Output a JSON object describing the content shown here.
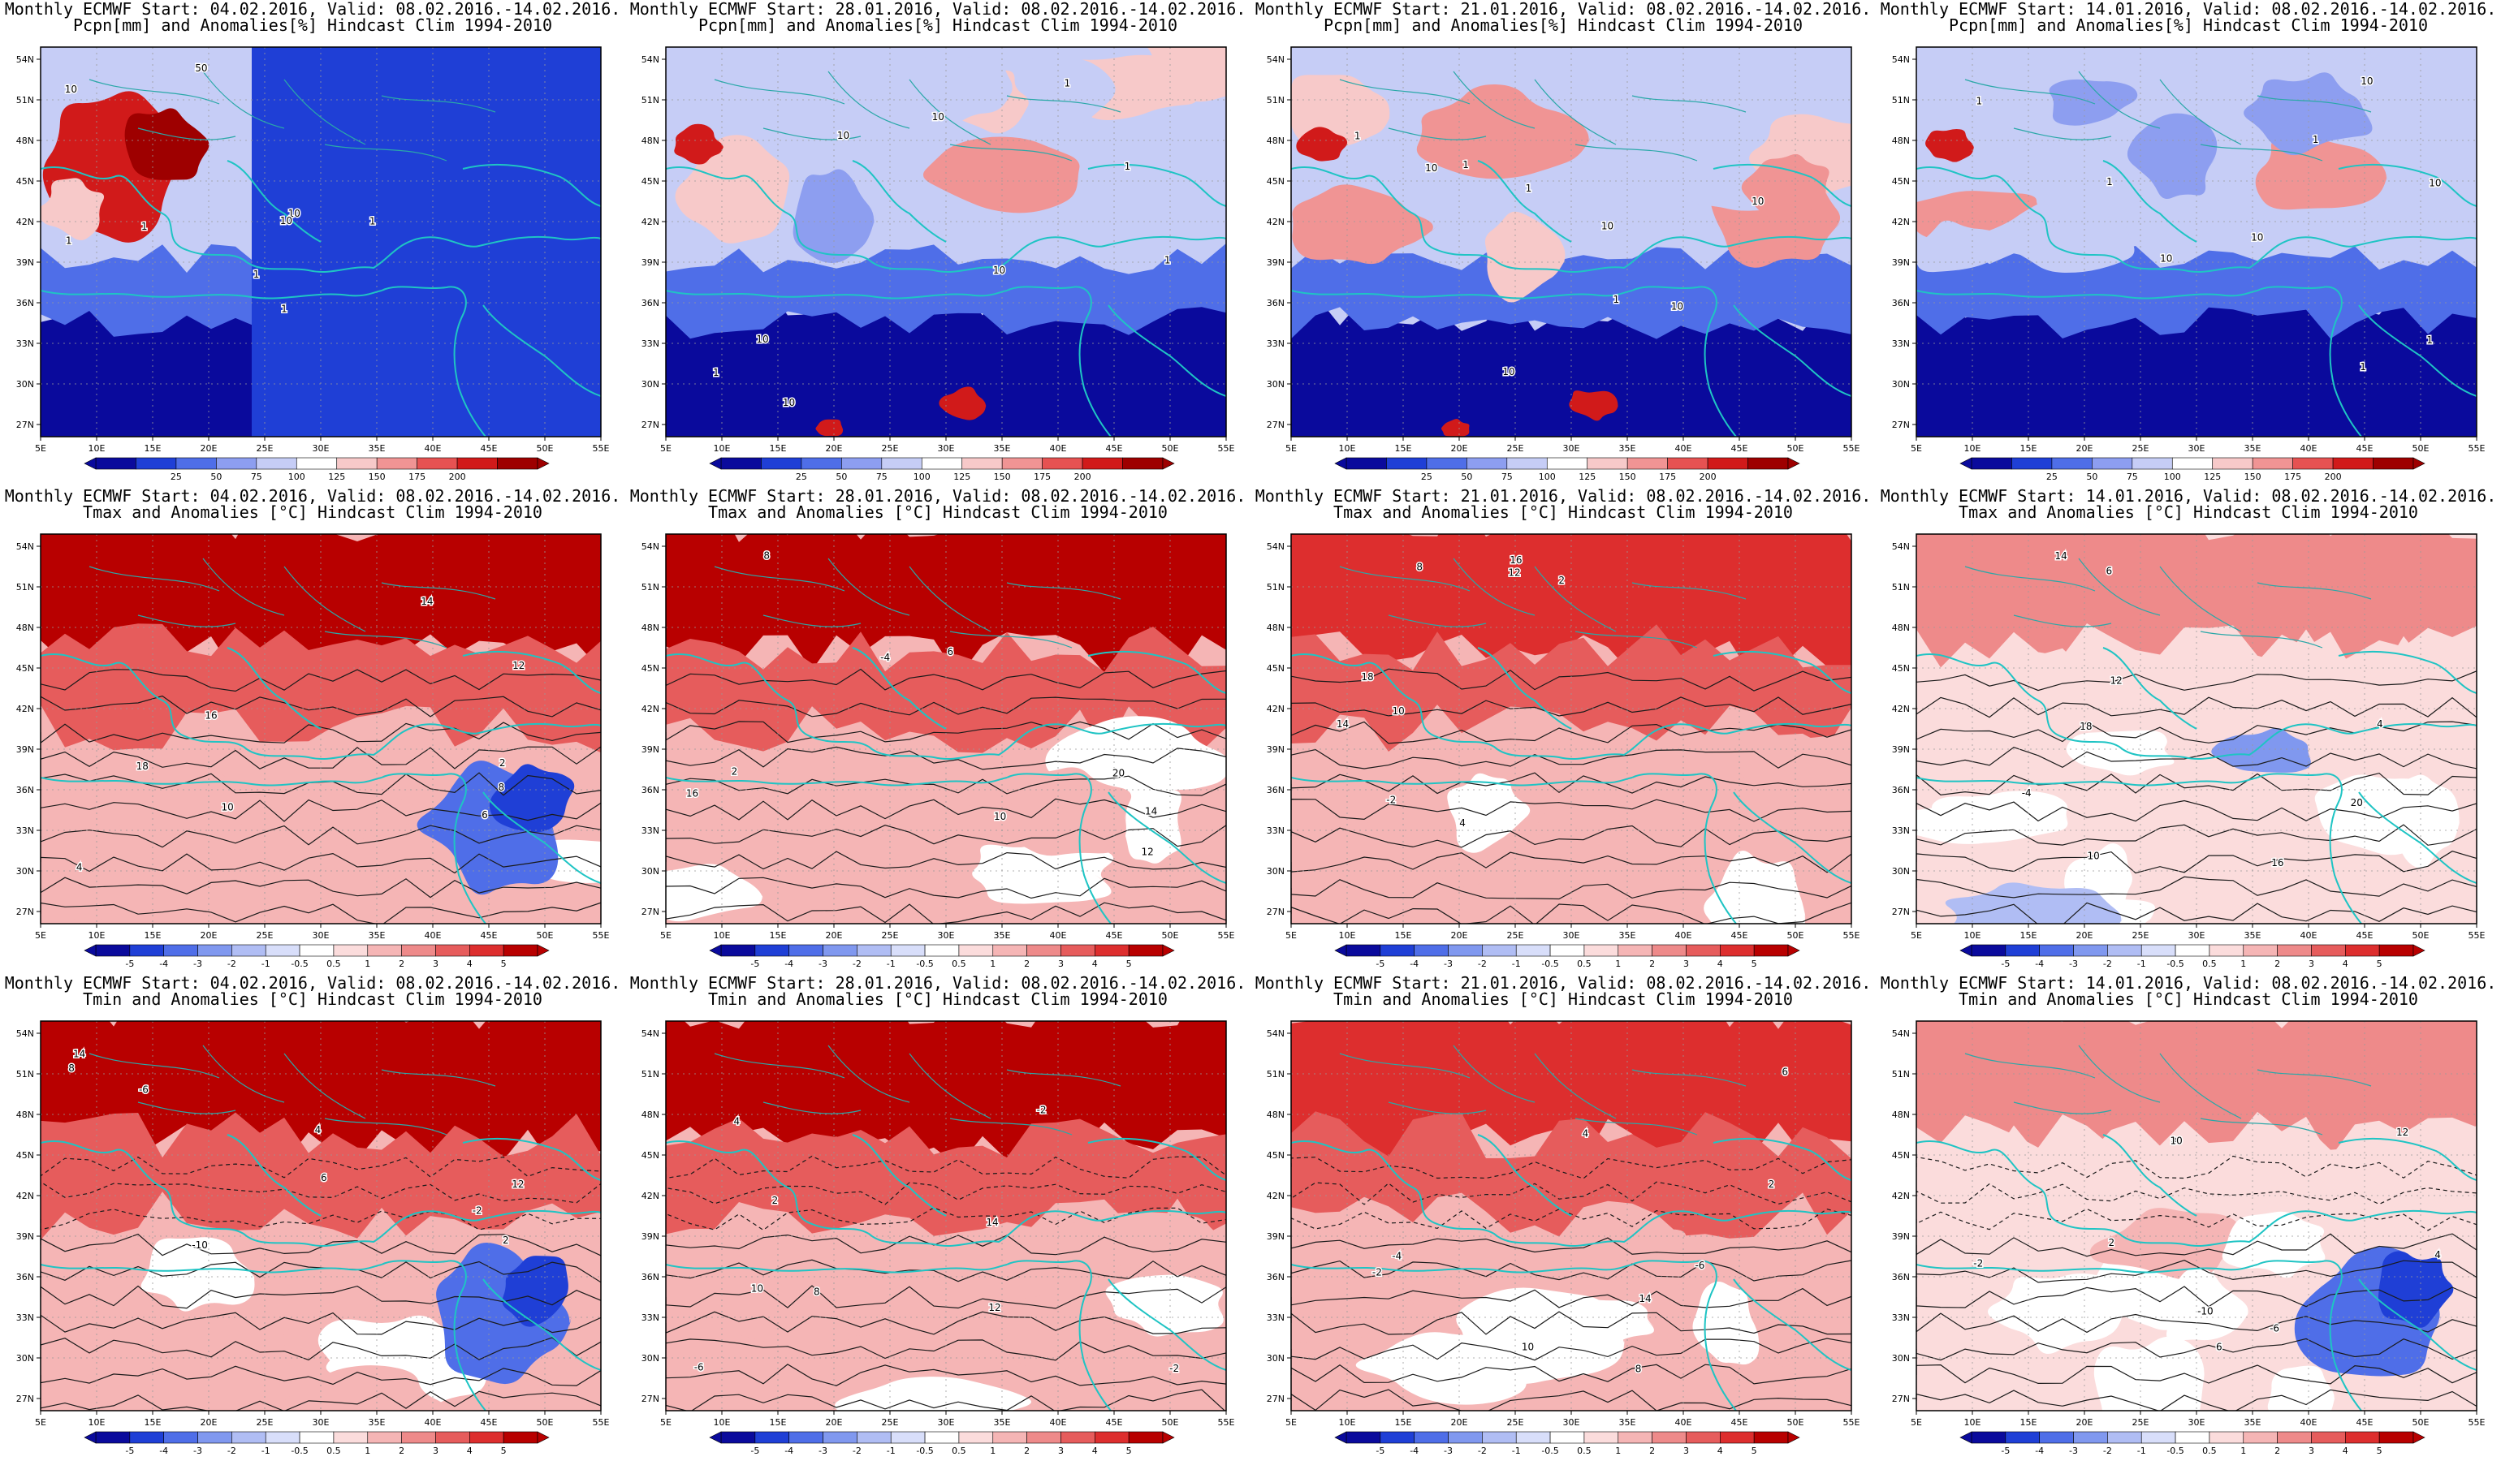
{
  "panels": [
    {
      "title": "Monthly ECMWF Start: 04.02.2016, Valid: 08.02.2016.-14.02.2016.",
      "subtitle": "Pcpn[mm] and Anomalies[%] Hindcast Clim 1994-2010",
      "var": "pcpn",
      "scheme": "pcpn",
      "style": 0,
      "labels": [
        "50",
        "10",
        "10",
        "10",
        "1",
        "1",
        "1",
        "1",
        "1"
      ]
    },
    {
      "title": "Monthly ECMWF Start: 28.01.2016, Valid: 08.02.2016.-14.02.2016.",
      "subtitle": "Pcpn[mm] and Anomalies[%] Hindcast Clim 1994-2010",
      "var": "pcpn",
      "scheme": "pcpn",
      "style": 1,
      "labels": [
        "10",
        "10",
        "10",
        "10",
        "10",
        "1",
        "1",
        "1",
        "1"
      ]
    },
    {
      "title": "Monthly ECMWF Start: 21.01.2016, Valid: 08.02.2016.-14.02.2016.",
      "subtitle": "Pcpn[mm] and Anomalies[%] Hindcast Clim 1994-2010",
      "var": "pcpn",
      "scheme": "pcpn",
      "style": 2,
      "labels": [
        "10",
        "10",
        "10",
        "10",
        "10",
        "1",
        "1",
        "1",
        "1"
      ]
    },
    {
      "title": "Monthly ECMWF Start: 14.01.2016, Valid: 08.02.2016.-14.02.2016.",
      "subtitle": "Pcpn[mm] and Anomalies[%] Hindcast Clim 1994-2010",
      "var": "pcpn",
      "scheme": "pcpn",
      "style": 3,
      "labels": [
        "10",
        "10",
        "10",
        "10",
        "1",
        "1",
        "1",
        "1",
        "1"
      ]
    },
    {
      "title": "Monthly ECMWF Start: 04.02.2016, Valid: 08.02.2016.-14.02.2016.",
      "subtitle": "Tmax and Anomalies [°C] Hindcast Clim 1994-2010",
      "var": "tmax",
      "scheme": "temp",
      "style": 4,
      "labels": [
        "2",
        "4",
        "6",
        "8",
        "10",
        "12",
        "14",
        "16",
        "18"
      ]
    },
    {
      "title": "Monthly ECMWF Start: 28.01.2016, Valid: 08.02.2016.-14.02.2016.",
      "subtitle": "Tmax and Anomalies [°C] Hindcast Clim 1994-2010",
      "var": "tmax",
      "scheme": "temp",
      "style": 5,
      "labels": [
        "-4",
        "2",
        "6",
        "8",
        "10",
        "12",
        "14",
        "16",
        "20"
      ]
    },
    {
      "title": "Monthly ECMWF Start: 21.01.2016, Valid: 08.02.2016.-14.02.2016.",
      "subtitle": "Tmax and Anomalies [°C] Hindcast Clim 1994-2010",
      "var": "tmax",
      "scheme": "temp",
      "style": 6,
      "labels": [
        "-2",
        "2",
        "4",
        "8",
        "10",
        "12",
        "14",
        "16",
        "18"
      ]
    },
    {
      "title": "Monthly ECMWF Start: 14.01.2016, Valid: 08.02.2016.-14.02.2016.",
      "subtitle": "Tmax and Anomalies [°C] Hindcast Clim 1994-2010",
      "var": "tmax",
      "scheme": "temp",
      "style": 7,
      "labels": [
        "-4",
        "4",
        "6",
        "10",
        "12",
        "14",
        "16",
        "18",
        "20"
      ]
    },
    {
      "title": "Monthly ECMWF Start: 04.02.2016, Valid: 08.02.2016.-14.02.2016.",
      "subtitle": "Tmin and Anomalies [°C] Hindcast Clim 1994-2010",
      "var": "tmin",
      "scheme": "temp",
      "style": 8,
      "labels": [
        "-10",
        "-6",
        "-2",
        "2",
        "4",
        "6",
        "8",
        "12",
        "14"
      ]
    },
    {
      "title": "Monthly ECMWF Start: 28.01.2016, Valid: 08.02.2016.-14.02.2016.",
      "subtitle": "Tmin and Anomalies [°C] Hindcast Clim 1994-2010",
      "var": "tmin",
      "scheme": "temp",
      "style": 9,
      "labels": [
        "-6",
        "-2",
        "-2",
        "2",
        "4",
        "8",
        "10",
        "12",
        "14"
      ]
    },
    {
      "title": "Monthly ECMWF Start: 21.01.2016, Valid: 08.02.2016.-14.02.2016.",
      "subtitle": "Tmin and Anomalies [°C] Hindcast Clim 1994-2010",
      "var": "tmin",
      "scheme": "temp",
      "style": 10,
      "labels": [
        "-6",
        "-4",
        "-2",
        "2",
        "4",
        "6",
        "8",
        "10",
        "14"
      ]
    },
    {
      "title": "Monthly ECMWF Start: 14.01.2016, Valid: 08.02.2016.-14.02.2016.",
      "subtitle": "Tmin and Anomalies [°C] Hindcast Clim 1994-2010",
      "var": "tmin",
      "scheme": "temp",
      "style": 11,
      "labels": [
        "-10",
        "-6",
        "-2",
        "2",
        "4",
        "6",
        "8",
        "10",
        "12"
      ]
    }
  ],
  "axes": {
    "lon_labels": [
      "5E",
      "10E",
      "15E",
      "20E",
      "25E",
      "30E",
      "35E",
      "40E",
      "45E",
      "50E",
      "55E"
    ],
    "lat_labels": [
      "54N",
      "51N",
      "48N",
      "45N",
      "42N",
      "39N",
      "36N",
      "33N",
      "30N",
      "27N"
    ]
  },
  "colorbars": {
    "pcpn": {
      "labels": [
        "25",
        "50",
        "75",
        "100",
        "125",
        "150",
        "175",
        "200"
      ],
      "colors": [
        "#0a0a9c",
        "#1f3fd6",
        "#4f6ee8",
        "#8d9ef0",
        "#c6cdf6",
        "#ffffff",
        "#f7c9c9",
        "#f09494",
        "#e65252",
        "#d11a1a",
        "#9e0000"
      ]
    },
    "temp": {
      "labels": [
        "-5",
        "-4",
        "-3",
        "-2",
        "-1",
        "-0.5",
        "0.5",
        "1",
        "2",
        "3",
        "4",
        "5"
      ],
      "colors": [
        "#0a0a9c",
        "#1f3fd6",
        "#4f6ee8",
        "#8098ef",
        "#b0bdf4",
        "#d8defa",
        "#ffffff",
        "#fbdcdc",
        "#f5b5b5",
        "#ee8a8a",
        "#e65c5c",
        "#dd2e2e",
        "#b80000"
      ]
    }
  }
}
